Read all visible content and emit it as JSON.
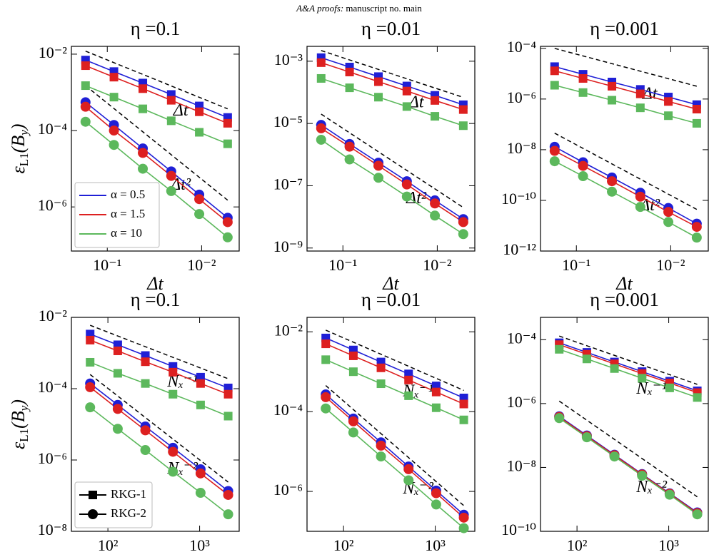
{
  "header": {
    "journal": "A&A proofs:",
    "manuscript": "manuscript no. main"
  },
  "chart_data": [
    {
      "type": "line",
      "title": "η =0.1",
      "xlabel": "Δt",
      "ylabel": [
        "ε",
        "L1",
        "(B",
        "y",
        ")"
      ],
      "xscale": "log",
      "yscale": "log",
      "x": [
        0.17,
        0.085,
        0.042,
        0.021,
        0.0106,
        0.0053
      ],
      "xlim": [
        0.24,
        0.004
      ],
      "xticks": [
        {
          "value": 0.1,
          "label": "10⁻¹"
        },
        {
          "value": 0.01,
          "label": "10⁻²"
        }
      ],
      "ylim": [
        7e-08,
        0.016
      ],
      "yticks": [
        {
          "value": 0.01,
          "label": "10⁻²"
        },
        {
          "value": 0.0001,
          "label": "10⁻⁴"
        },
        {
          "value": 1e-06,
          "label": "10⁻⁶"
        }
      ],
      "series": [
        {
          "color": "#1f1fd6",
          "marker": "square",
          "values": [
            0.007,
            0.0035,
            0.00175,
            0.00088,
            0.00044,
            0.00022
          ]
        },
        {
          "color": "#dd2020",
          "marker": "square",
          "values": [
            0.005,
            0.0025,
            0.00125,
            0.00062,
            0.00031,
            0.000155
          ]
        },
        {
          "color": "#5cb85c",
          "marker": "square",
          "values": [
            0.0015,
            0.00075,
            0.00037,
            0.00018,
            9e-05,
            4.5e-05
          ]
        },
        {
          "color": "#1f1fd6",
          "marker": "circle",
          "values": [
            0.00055,
            0.00014,
            3.4e-05,
            8.5e-06,
            2.1e-06,
            5.2e-07
          ]
        },
        {
          "color": "#dd2020",
          "marker": "circle",
          "values": [
            0.00042,
            0.0001,
            2.6e-05,
            6.5e-06,
            1.6e-06,
            4e-07
          ]
        },
        {
          "color": "#5cb85c",
          "marker": "circle",
          "values": [
            0.00017,
            4.2e-05,
            1e-05,
            2.6e-06,
            6.5e-07,
            1.6e-07
          ]
        }
      ],
      "reference_lines": [
        {
          "label": "Δt",
          "x": [
            0.17,
            0.0053
          ],
          "y": [
            0.012,
            0.00037
          ]
        },
        {
          "label": "Δt²",
          "x": [
            0.17,
            0.0053
          ],
          "y": [
            0.0015,
            1.5e-06
          ]
        }
      ],
      "legend": {
        "loc": "lower left",
        "entries": [
          {
            "label": "α = 0.5",
            "color": "#1f1fd6"
          },
          {
            "label": "α = 1.5",
            "color": "#dd2020"
          },
          {
            "label": "α = 10",
            "color": "#5cb85c"
          }
        ]
      }
    },
    {
      "type": "line",
      "title": "η =0.01",
      "xlabel": "Δt",
      "xscale": "log",
      "yscale": "log",
      "x": [
        0.17,
        0.085,
        0.042,
        0.021,
        0.0106,
        0.0053
      ],
      "xlim": [
        0.24,
        0.004
      ],
      "xticks": [
        {
          "value": 0.1,
          "label": "10⁻¹"
        },
        {
          "value": 0.01,
          "label": "10⁻²"
        }
      ],
      "ylim": [
        8e-10,
        0.003
      ],
      "yticks": [
        {
          "value": 0.001,
          "label": "10⁻³"
        },
        {
          "value": 1e-05,
          "label": "10⁻⁵"
        },
        {
          "value": 1e-07,
          "label": "10⁻⁷"
        },
        {
          "value": 1e-09,
          "label": "10⁻⁹"
        }
      ],
      "series": [
        {
          "color": "#1f1fd6",
          "marker": "square",
          "values": [
            0.0013,
            0.00065,
            0.00032,
            0.00016,
            8e-05,
            4e-05
          ]
        },
        {
          "color": "#dd2020",
          "marker": "square",
          "values": [
            0.0009,
            0.00045,
            0.00022,
            0.00011,
            5.5e-05,
            2.8e-05
          ]
        },
        {
          "color": "#5cb85c",
          "marker": "square",
          "values": [
            0.00028,
            0.00014,
            7e-05,
            3.5e-05,
            1.7e-05,
            8.5e-06
          ]
        },
        {
          "color": "#1f1fd6",
          "marker": "circle",
          "values": [
            9e-06,
            2.2e-06,
            5.5e-07,
            1.4e-07,
            3.4e-08,
            8.5e-09
          ]
        },
        {
          "color": "#dd2020",
          "marker": "circle",
          "values": [
            7e-06,
            1.8e-06,
            4.4e-07,
            1.1e-07,
            2.7e-08,
            6.8e-09
          ]
        },
        {
          "color": "#5cb85c",
          "marker": "circle",
          "values": [
            3e-06,
            7e-07,
            1.8e-07,
            4.5e-08,
            1.1e-08,
            2.8e-09
          ]
        }
      ],
      "reference_lines": [
        {
          "label": "Δt",
          "x": [
            0.17,
            0.0053
          ],
          "y": [
            0.0022,
            6.9e-05
          ]
        },
        {
          "label": "Δt²",
          "x": [
            0.17,
            0.0053
          ],
          "y": [
            2e-05,
            2e-08
          ]
        }
      ]
    },
    {
      "type": "line",
      "title": "η =0.001",
      "xlabel": "Δt",
      "xscale": "log",
      "yscale": "log",
      "x": [
        0.17,
        0.085,
        0.042,
        0.021,
        0.0106,
        0.0053
      ],
      "xlim": [
        0.24,
        0.004
      ],
      "xticks": [
        {
          "value": 0.1,
          "label": "10⁻¹"
        },
        {
          "value": 0.01,
          "label": "10⁻²"
        }
      ],
      "ylim": [
        1e-12,
        0.00012
      ],
      "yticks": [
        {
          "value": 0.0001,
          "label": "10⁻⁴"
        },
        {
          "value": 1e-06,
          "label": "10⁻⁶"
        },
        {
          "value": 1e-08,
          "label": "10⁻⁸"
        },
        {
          "value": 1e-10,
          "label": "10⁻¹⁰"
        },
        {
          "value": 1e-12,
          "label": "10⁻¹²"
        }
      ],
      "series": [
        {
          "color": "#1f1fd6",
          "marker": "square",
          "values": [
            1.9e-05,
            9.5e-06,
            4.7e-06,
            2.4e-06,
            1.2e-06,
            6e-07
          ]
        },
        {
          "color": "#dd2020",
          "marker": "square",
          "values": [
            1.3e-05,
            6.5e-06,
            3.2e-06,
            1.6e-06,
            8e-07,
            4e-07
          ]
        },
        {
          "color": "#5cb85c",
          "marker": "square",
          "values": [
            3.5e-06,
            1.8e-06,
            9e-07,
            4.5e-07,
            2.2e-07,
            1.1e-07
          ]
        },
        {
          "color": "#1f1fd6",
          "marker": "circle",
          "values": [
            1.3e-08,
            3.2e-09,
            8e-10,
            2e-10,
            5e-11,
            1.2e-11
          ]
        },
        {
          "color": "#dd2020",
          "marker": "circle",
          "values": [
            9e-09,
            2.3e-09,
            5.7e-10,
            1.4e-10,
            3.5e-11,
            9e-12
          ]
        },
        {
          "color": "#5cb85c",
          "marker": "circle",
          "values": [
            3.5e-09,
            9e-10,
            2.2e-10,
            5.5e-11,
            1.4e-11,
            3.4e-12
          ]
        }
      ],
      "reference_lines": [
        {
          "label": "Δt",
          "x": [
            0.17,
            0.0053
          ],
          "y": [
            0.0001,
            3.2e-06
          ]
        },
        {
          "label": "Δt²",
          "x": [
            0.17,
            0.0053
          ],
          "y": [
            4.5e-08,
            4.4e-11
          ]
        }
      ]
    },
    {
      "type": "line",
      "title": "η =0.1",
      "xlabel": "Nₓ",
      "ylabel": [
        "ε",
        "L1",
        "(B",
        "y",
        ")"
      ],
      "xscale": "log",
      "yscale": "log",
      "x": [
        64,
        128,
        256,
        512,
        1024,
        2048
      ],
      "xlim": [
        40,
        2700
      ],
      "xticks": [
        {
          "value": 100,
          "label": "10²"
        },
        {
          "value": 1000,
          "label": "10³"
        }
      ],
      "ylim": [
        1e-08,
        0.01
      ],
      "yticks": [
        {
          "value": 0.01,
          "label": "10⁻²"
        },
        {
          "value": 0.0001,
          "label": "10⁻⁴"
        },
        {
          "value": 1e-06,
          "label": "10⁻⁶"
        },
        {
          "value": 1e-08,
          "label": "10⁻⁸"
        }
      ],
      "series": [
        {
          "color": "#1f1fd6",
          "marker": "square",
          "values": [
            0.0034,
            0.0017,
            0.00085,
            0.00042,
            0.00021,
            0.000105
          ]
        },
        {
          "color": "#dd2020",
          "marker": "square",
          "values": [
            0.0023,
            0.00115,
            0.00057,
            0.00029,
            0.00014,
            7e-05
          ]
        },
        {
          "color": "#5cb85c",
          "marker": "square",
          "values": [
            0.00055,
            0.00027,
            0.00014,
            7e-05,
            3.5e-05,
            1.7e-05
          ]
        },
        {
          "color": "#1f1fd6",
          "marker": "circle",
          "values": [
            0.00014,
            3.5e-05,
            8.7e-06,
            2.2e-06,
            5.5e-07,
            1.35e-07
          ]
        },
        {
          "color": "#dd2020",
          "marker": "circle",
          "values": [
            0.00011,
            2.7e-05,
            6.8e-06,
            1.7e-06,
            4.2e-07,
            1.05e-07
          ]
        },
        {
          "color": "#5cb85c",
          "marker": "circle",
          "values": [
            3e-05,
            7.5e-06,
            1.9e-06,
            4.7e-07,
            1.2e-07,
            3e-08
          ]
        }
      ],
      "reference_lines": [
        {
          "label": "Nₓ⁻¹",
          "x": [
            64,
            2048
          ],
          "y": [
            0.006,
            0.00019
          ]
        },
        {
          "label": "Nₓ⁻²",
          "x": [
            64,
            2048
          ],
          "y": [
            0.00025,
            2.4e-07
          ]
        }
      ],
      "legend": {
        "loc": "lower left",
        "entries": [
          {
            "label": "RKG-1",
            "color": "#000000",
            "marker": "square"
          },
          {
            "label": "RKG-2",
            "color": "#000000",
            "marker": "circle"
          }
        ]
      }
    },
    {
      "type": "line",
      "title": "η =0.01",
      "xlabel": "Nₓ",
      "xscale": "log",
      "yscale": "log",
      "x": [
        64,
        128,
        256,
        512,
        1024,
        2048
      ],
      "xlim": [
        40,
        2700
      ],
      "xticks": [
        {
          "value": 100,
          "label": "10²"
        },
        {
          "value": 1000,
          "label": "10³"
        }
      ],
      "ylim": [
        1e-07,
        0.023
      ],
      "yticks": [
        {
          "value": 0.01,
          "label": "10⁻²"
        },
        {
          "value": 0.0001,
          "label": "10⁻⁴"
        },
        {
          "value": 1e-06,
          "label": "10⁻⁶"
        }
      ],
      "series": [
        {
          "color": "#1f1fd6",
          "marker": "square",
          "values": [
            0.007,
            0.0035,
            0.00175,
            0.00088,
            0.00044,
            0.00022
          ]
        },
        {
          "color": "#dd2020",
          "marker": "square",
          "values": [
            0.005,
            0.0025,
            0.00125,
            0.00062,
            0.00031,
            0.000155
          ]
        },
        {
          "color": "#5cb85c",
          "marker": "square",
          "values": [
            0.002,
            0.001,
            0.0005,
            0.00025,
            0.000125,
            6.2e-05
          ]
        },
        {
          "color": "#1f1fd6",
          "marker": "circle",
          "values": [
            0.00027,
            6.7e-05,
            1.7e-05,
            4.2e-06,
            1.05e-06,
            2.6e-07
          ]
        },
        {
          "color": "#dd2020",
          "marker": "circle",
          "values": [
            0.00023,
            5.7e-05,
            1.4e-05,
            3.6e-06,
            9e-07,
            2.2e-07
          ]
        },
        {
          "color": "#5cb85c",
          "marker": "circle",
          "values": [
            0.00012,
            3e-05,
            7.5e-06,
            1.9e-06,
            4.7e-07,
            1.2e-07
          ]
        }
      ],
      "reference_lines": [
        {
          "label": "Nₓ⁻¹",
          "x": [
            64,
            2048
          ],
          "y": [
            0.011,
            0.00034
          ]
        },
        {
          "label": "Nₓ⁻²",
          "x": [
            64,
            2048
          ],
          "y": [
            0.00045,
            4.4e-07
          ]
        }
      ]
    },
    {
      "type": "line",
      "title": "η =0.001",
      "xlabel": "Nₓ",
      "xscale": "log",
      "yscale": "log",
      "x": [
        64,
        128,
        256,
        512,
        1024,
        2048
      ],
      "xlim": [
        40,
        2700
      ],
      "xticks": [
        {
          "value": 100,
          "label": "10²"
        },
        {
          "value": 1000,
          "label": "10³"
        }
      ],
      "ylim": [
        1e-10,
        0.0005
      ],
      "yticks": [
        {
          "value": 0.0001,
          "label": "10⁻⁴"
        },
        {
          "value": 1e-06,
          "label": "10⁻⁶"
        },
        {
          "value": 1e-08,
          "label": "10⁻⁸"
        },
        {
          "value": 1e-10,
          "label": "10⁻¹⁰"
        }
      ],
      "series": [
        {
          "color": "#1f1fd6",
          "marker": "square",
          "values": [
            8e-05,
            4e-05,
            2e-05,
            1e-05,
            5e-06,
            2.5e-06
          ]
        },
        {
          "color": "#dd2020",
          "marker": "square",
          "values": [
            7e-05,
            3.5e-05,
            1.75e-05,
            8.7e-06,
            4.4e-06,
            2.2e-06
          ]
        },
        {
          "color": "#5cb85c",
          "marker": "square",
          "values": [
            5e-05,
            2.5e-05,
            1.25e-05,
            6.2e-06,
            3.1e-06,
            1.55e-06
          ]
        },
        {
          "color": "#1f1fd6",
          "marker": "circle",
          "values": [
            4e-07,
            1e-07,
            2.5e-08,
            6.2e-09,
            1.55e-09,
            3.9e-10
          ]
        },
        {
          "color": "#dd2020",
          "marker": "circle",
          "values": [
            3.8e-07,
            9.5e-08,
            2.4e-08,
            6e-09,
            1.5e-09,
            3.7e-10
          ]
        },
        {
          "color": "#5cb85c",
          "marker": "circle",
          "values": [
            3.5e-07,
            8.8e-08,
            2.2e-08,
            5.5e-09,
            1.4e-09,
            3.4e-10
          ]
        }
      ],
      "reference_lines": [
        {
          "label": "Nₓ⁻¹",
          "x": [
            64,
            2048
          ],
          "y": [
            0.00013,
            4e-06
          ]
        },
        {
          "label": "Nₓ⁻²",
          "x": [
            64,
            2048
          ],
          "y": [
            1.2e-06,
            1.2e-09
          ]
        }
      ]
    }
  ]
}
